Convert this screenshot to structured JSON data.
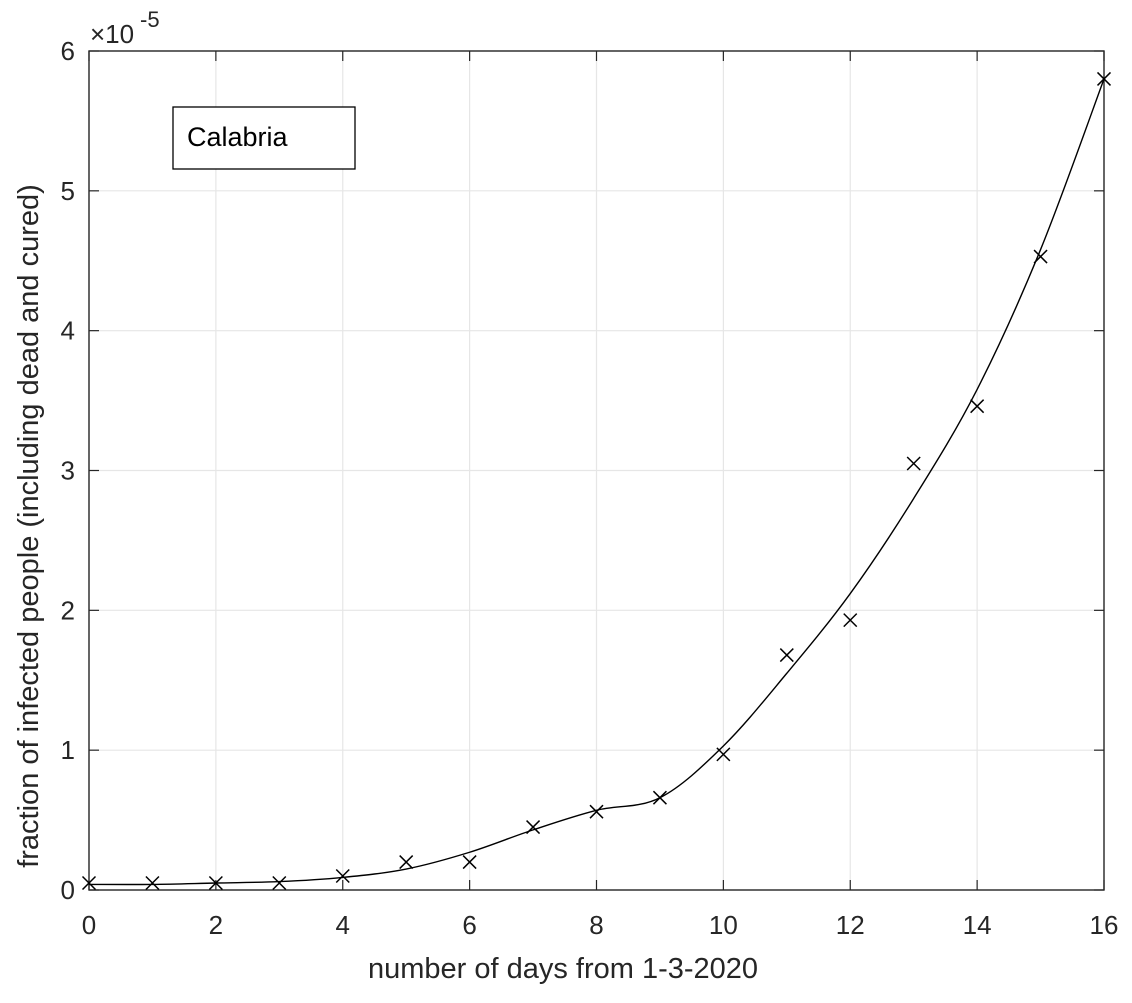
{
  "chart_data": {
    "type": "line",
    "title": "",
    "xlabel": "number of days from 1-3-2020",
    "ylabel": "fraction of infected people (including dead and cured)",
    "xlim": [
      0,
      16
    ],
    "ylim": [
      0,
      6
    ],
    "y_multiplier_label": "×10",
    "y_multiplier_exponent": "-5",
    "x_ticks": [
      "0",
      "2",
      "4",
      "6",
      "8",
      "10",
      "12",
      "14",
      "16"
    ],
    "y_ticks": [
      "0",
      "1",
      "2",
      "3",
      "4",
      "5",
      "6"
    ],
    "grid": true,
    "legend": {
      "text": "Calabria",
      "placement": "top-left"
    },
    "series": [
      {
        "marker": "x",
        "style": "markers",
        "x": [
          0,
          1,
          2,
          3,
          4,
          5,
          6,
          7,
          8,
          9,
          10,
          11,
          12,
          13,
          14,
          15,
          16
        ],
        "y": [
          0.05,
          0.05,
          0.05,
          0.05,
          0.1,
          0.2,
          0.2,
          0.45,
          0.56,
          0.66,
          0.97,
          1.68,
          1.93,
          3.05,
          3.46,
          4.53,
          5.8
        ]
      },
      {
        "style": "line",
        "x": [
          0,
          1,
          2,
          3,
          4,
          5,
          6,
          7,
          8,
          9,
          10,
          11,
          12,
          13,
          14,
          15,
          16
        ],
        "y": [
          0.04,
          0.04,
          0.05,
          0.06,
          0.09,
          0.15,
          0.27,
          0.43,
          0.57,
          0.66,
          1.03,
          1.55,
          2.12,
          2.8,
          3.58,
          4.58,
          5.8
        ]
      }
    ],
    "colors": {
      "line": "#000000",
      "grid": "#e6e6e6",
      "axes": "#262626"
    }
  }
}
